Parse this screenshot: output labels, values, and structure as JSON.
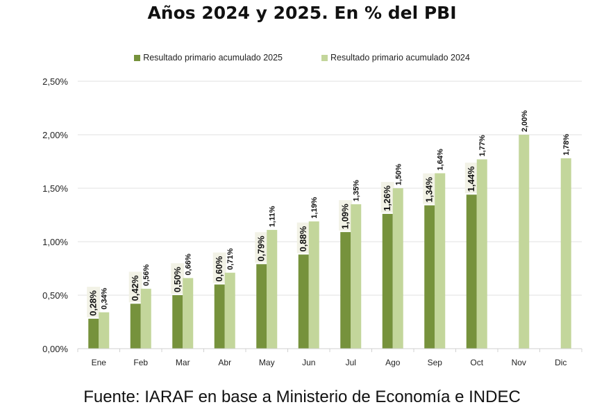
{
  "chart_data": {
    "type": "bar",
    "title": "Años 2024 y 2025. En % del PBI",
    "categories": [
      "Ene",
      "Feb",
      "Mar",
      "Abr",
      "May",
      "Jun",
      "Jul",
      "Ago",
      "Sep",
      "Oct",
      "Nov",
      "Dic"
    ],
    "series": [
      {
        "name": "Resultado primario acumulado 2025",
        "color": "#76923c",
        "values": [
          0.28,
          0.42,
          0.5,
          0.6,
          0.79,
          0.88,
          1.09,
          1.26,
          1.34,
          1.44,
          null,
          null
        ],
        "labels": [
          "0,28%",
          "0,42%",
          "0,50%",
          "0,60%",
          "0,79%",
          "0,88%",
          "1,09%",
          "1,26%",
          "1,34%",
          "1,44%",
          null,
          null
        ]
      },
      {
        "name": "Resultado primario acumulado 2024",
        "color": "#c3d69b",
        "values": [
          0.34,
          0.56,
          0.66,
          0.71,
          1.11,
          1.19,
          1.35,
          1.5,
          1.64,
          1.77,
          2.0,
          1.78
        ],
        "labels": [
          "0,34%",
          "0,56%",
          "0,66%",
          "0,71%",
          "1,11%",
          "1,19%",
          "1,35%",
          "1,50%",
          "1,64%",
          "1,77%",
          "2,00%",
          "1,78%"
        ]
      }
    ],
    "ylim": [
      0,
      2.5
    ],
    "yticks": [
      "0,00%",
      "0,50%",
      "1,00%",
      "1,50%",
      "2,00%",
      "2,50%"
    ],
    "ytick_values": [
      0,
      0.5,
      1.0,
      1.5,
      2.0,
      2.5
    ],
    "grid": true,
    "legend_position": "top",
    "xlabel": "",
    "ylabel": ""
  },
  "source": "Fuente: IARAF en base a Ministerio de Economía e INDEC"
}
